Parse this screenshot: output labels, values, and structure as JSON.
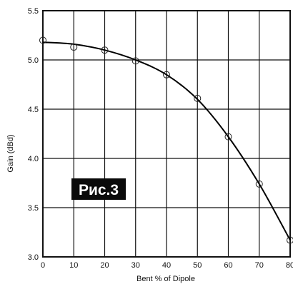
{
  "chart_data": {
    "type": "scatter",
    "xlabel": "Bent % of Dipole",
    "ylabel": "Gain (dBd)",
    "xlim": [
      0,
      80
    ],
    "ylim": [
      3.0,
      5.5
    ],
    "x_ticks": [
      "0",
      "10",
      "20",
      "30",
      "40",
      "50",
      "60",
      "70",
      "80"
    ],
    "y_ticks": [
      "3.0",
      "3.5",
      "4.0",
      "4.5",
      "5.0",
      "5.5"
    ],
    "grid": true,
    "points": [
      {
        "x": 0,
        "y": 5.2
      },
      {
        "x": 10,
        "y": 5.13
      },
      {
        "x": 20,
        "y": 5.1
      },
      {
        "x": 30,
        "y": 4.99
      },
      {
        "x": 40,
        "y": 4.85
      },
      {
        "x": 50,
        "y": 4.61
      },
      {
        "x": 60,
        "y": 4.22
      },
      {
        "x": 70,
        "y": 3.74
      },
      {
        "x": 80,
        "y": 3.17
      }
    ],
    "fit_curve": [
      {
        "x": 0,
        "y": 5.18
      },
      {
        "x": 10,
        "y": 5.16
      },
      {
        "x": 20,
        "y": 5.1
      },
      {
        "x": 30,
        "y": 5.0
      },
      {
        "x": 40,
        "y": 4.85
      },
      {
        "x": 50,
        "y": 4.6
      },
      {
        "x": 60,
        "y": 4.22
      },
      {
        "x": 70,
        "y": 3.74
      },
      {
        "x": 80,
        "y": 3.17
      }
    ],
    "annotation": "Рис.3"
  }
}
